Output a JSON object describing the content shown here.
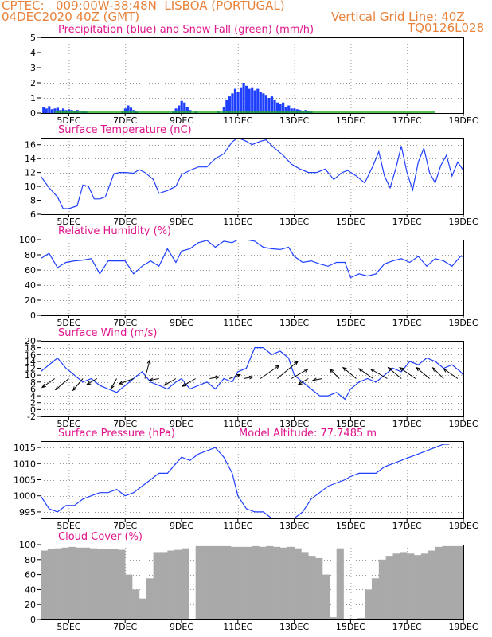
{
  "header": {
    "line1": "CPTEC:   009:00W-38:48N  LISBOA (PORTUGAL)",
    "line2": "04DEC2020 40Z (GMT)",
    "vertical_grid": "Vertical Grid Line: 40Z",
    "code": "TQ0126L028",
    "color": "#e8823a"
  },
  "colors": {
    "title": "#e0148c",
    "line": "#1f3fff",
    "precip": "#1f3fff",
    "snow": "#1faa1f",
    "cloud": "#a9a9a9",
    "arrow": "#000000"
  },
  "x_axis": {
    "range": [
      4,
      19
    ],
    "ticks": [
      5,
      7,
      9,
      11,
      13,
      15,
      17,
      19
    ],
    "tick_labels": [
      "5DEC",
      "7DEC",
      "9DEC",
      "11DEC",
      "13DEC",
      "15DEC",
      "17DEC",
      "19DEC"
    ]
  },
  "chart_data": [
    {
      "type": "bar",
      "title": "Precipitation (blue) and Snow Fall (green) (mm/h)",
      "ylim": [
        0,
        5
      ],
      "yticks": [
        0,
        1,
        2,
        3,
        4,
        5
      ],
      "series": [
        {
          "name": "Precipitation",
          "x": [
            4.1,
            4.2,
            4.3,
            4.4,
            4.5,
            4.6,
            4.7,
            4.8,
            4.9,
            5.0,
            5.1,
            5.2,
            5.3,
            5.4,
            5.5,
            5.6,
            6.9,
            7.0,
            7.1,
            7.2,
            7.3,
            7.4,
            8.7,
            8.8,
            8.9,
            9.0,
            9.1,
            9.2,
            9.3,
            9.5,
            10.3,
            10.5,
            10.6,
            10.7,
            10.8,
            10.9,
            11.0,
            11.1,
            11.2,
            11.3,
            11.4,
            11.5,
            11.6,
            11.7,
            11.8,
            11.9,
            12.0,
            12.1,
            12.2,
            12.3,
            12.4,
            12.5,
            12.6,
            12.7,
            12.8,
            12.9,
            13.0,
            13.1,
            13.2,
            13.3,
            13.4,
            13.5,
            13.6
          ],
          "values": [
            0.4,
            0.3,
            0.45,
            0.25,
            0.3,
            0.35,
            0.2,
            0.3,
            0.2,
            0.25,
            0.2,
            0.15,
            0.2,
            0.1,
            0.15,
            0.1,
            0.1,
            0.3,
            0.5,
            0.35,
            0.2,
            0.1,
            0.1,
            0.3,
            0.5,
            0.8,
            0.7,
            0.4,
            0.2,
            0.1,
            0.1,
            0.4,
            0.9,
            1.1,
            1.3,
            1.6,
            1.4,
            1.7,
            2.0,
            1.8,
            1.6,
            1.7,
            1.5,
            1.6,
            1.4,
            1.3,
            1.2,
            1.0,
            1.1,
            0.9,
            0.7,
            0.6,
            0.7,
            0.4,
            0.5,
            0.3,
            0.3,
            0.25,
            0.2,
            0.15,
            0.2,
            0.15,
            0.1
          ]
        },
        {
          "name": "Snow Fall",
          "x": [
            4.5,
            6.0,
            7.5,
            9.0,
            10.5,
            12.0,
            13.5,
            15.0,
            16.5,
            18.0
          ],
          "values": [
            0.05,
            0.05,
            0.05,
            0.05,
            0.05,
            0.05,
            0.05,
            0.05,
            0.05,
            0.05
          ]
        }
      ]
    },
    {
      "type": "line",
      "title": "Surface Temperature (nC)",
      "ylim": [
        6,
        17
      ],
      "yticks": [
        6,
        8,
        10,
        12,
        14,
        16
      ],
      "x": [
        4.0,
        4.3,
        4.6,
        4.8,
        5.0,
        5.3,
        5.5,
        5.7,
        5.9,
        6.1,
        6.3,
        6.6,
        6.8,
        7.0,
        7.3,
        7.5,
        7.7,
        8.0,
        8.2,
        8.5,
        8.8,
        9.0,
        9.3,
        9.6,
        9.9,
        10.2,
        10.5,
        10.8,
        11.0,
        11.3,
        11.5,
        11.8,
        12.0,
        12.3,
        12.6,
        12.9,
        13.2,
        13.5,
        13.8,
        14.1,
        14.4,
        14.7,
        14.9,
        15.2,
        15.5,
        15.8,
        16.0,
        16.2,
        16.4,
        16.6,
        16.8,
        17.0,
        17.2,
        17.4,
        17.6,
        17.8,
        18.0,
        18.2,
        18.4,
        18.6,
        18.8,
        19.0
      ],
      "values": [
        11.5,
        9.8,
        8.5,
        6.8,
        6.8,
        7.2,
        10.2,
        10.0,
        8.2,
        8.2,
        8.5,
        11.8,
        12.0,
        12.0,
        11.9,
        12.4,
        12.0,
        11.0,
        9.0,
        9.4,
        10.0,
        11.7,
        12.3,
        12.8,
        12.8,
        14.0,
        14.7,
        16.4,
        17.0,
        16.5,
        16.0,
        16.5,
        16.7,
        15.5,
        14.5,
        13.2,
        12.5,
        12.0,
        12.0,
        12.5,
        11.0,
        12.0,
        12.3,
        11.5,
        10.5,
        13.0,
        15.0,
        11.5,
        9.8,
        12.5,
        15.8,
        12.0,
        9.5,
        13.5,
        15.5,
        12.0,
        10.5,
        13.0,
        14.5,
        11.5,
        13.5,
        12.3
      ]
    },
    {
      "type": "line",
      "title": "Relative Humidity (%)",
      "ylim": [
        0,
        100
      ],
      "yticks": [
        0,
        20,
        40,
        60,
        80,
        100
      ],
      "x": [
        4.0,
        4.3,
        4.6,
        4.9,
        5.2,
        5.5,
        5.8,
        6.1,
        6.4,
        6.7,
        7.0,
        7.3,
        7.6,
        7.9,
        8.2,
        8.5,
        8.8,
        9.0,
        9.3,
        9.6,
        9.9,
        10.2,
        10.5,
        10.8,
        11.0,
        11.3,
        11.6,
        11.9,
        12.2,
        12.5,
        12.8,
        13.0,
        13.3,
        13.6,
        13.9,
        14.2,
        14.5,
        14.8,
        15.0,
        15.3,
        15.6,
        15.9,
        16.2,
        16.5,
        16.8,
        17.1,
        17.4,
        17.7,
        18.0,
        18.3,
        18.6,
        18.9,
        19.0
      ],
      "values": [
        75,
        82,
        63,
        70,
        72,
        73,
        75,
        55,
        72,
        72,
        72,
        55,
        65,
        72,
        65,
        88,
        70,
        85,
        88,
        96,
        99,
        90,
        98,
        96,
        100,
        100,
        98,
        90,
        88,
        87,
        90,
        78,
        70,
        72,
        68,
        65,
        70,
        70,
        50,
        55,
        52,
        55,
        68,
        72,
        75,
        70,
        78,
        65,
        75,
        72,
        65,
        78,
        78
      ]
    },
    {
      "type": "line",
      "title": "Surface Wind (m/s)",
      "ylim": [
        -2,
        20
      ],
      "yticks": [
        -2,
        0,
        2,
        4,
        6,
        8,
        10,
        12,
        14,
        16,
        18,
        20
      ],
      "x": [
        4.0,
        4.3,
        4.6,
        4.9,
        5.2,
        5.5,
        5.8,
        6.1,
        6.4,
        6.7,
        7.0,
        7.3,
        7.6,
        7.9,
        8.2,
        8.5,
        8.8,
        9.0,
        9.3,
        9.6,
        9.9,
        10.2,
        10.5,
        10.8,
        11.0,
        11.3,
        11.6,
        11.9,
        12.2,
        12.5,
        12.8,
        13.0,
        13.3,
        13.6,
        13.9,
        14.2,
        14.5,
        14.8,
        15.0,
        15.3,
        15.6,
        15.9,
        16.2,
        16.5,
        16.8,
        17.1,
        17.4,
        17.7,
        18.0,
        18.3,
        18.6,
        18.9,
        19.0
      ],
      "values": [
        11,
        13,
        15,
        12,
        10,
        8,
        9,
        7,
        6,
        5,
        7,
        9,
        11,
        8,
        7,
        6,
        8,
        9,
        6,
        7,
        8,
        6,
        9,
        8,
        11,
        12,
        18,
        18,
        16,
        17,
        15,
        10,
        8,
        6,
        4,
        4,
        5,
        3,
        6,
        8,
        9,
        8,
        10,
        12,
        11,
        14,
        13,
        15,
        14,
        12,
        13,
        11,
        10
      ],
      "arrows": [
        {
          "x": 4.5,
          "angle": 215,
          "speed": 8
        },
        {
          "x": 5.0,
          "angle": 220,
          "speed": 9
        },
        {
          "x": 5.5,
          "angle": 230,
          "speed": 8
        },
        {
          "x": 6.0,
          "angle": 210,
          "speed": 6
        },
        {
          "x": 6.7,
          "angle": 240,
          "speed": 6
        },
        {
          "x": 7.3,
          "angle": 200,
          "speed": 8
        },
        {
          "x": 7.7,
          "angle": 75,
          "speed": 10
        },
        {
          "x": 8.2,
          "angle": 190,
          "speed": 5
        },
        {
          "x": 8.8,
          "angle": 210,
          "speed": 7
        },
        {
          "x": 9.5,
          "angle": 210,
          "speed": 8
        },
        {
          "x": 10.0,
          "angle": 10,
          "speed": 5
        },
        {
          "x": 10.7,
          "angle": 20,
          "speed": 6
        },
        {
          "x": 11.2,
          "angle": 10,
          "speed": 5
        },
        {
          "x": 11.8,
          "angle": 35,
          "speed": 12
        },
        {
          "x": 12.4,
          "angle": 40,
          "speed": 14
        },
        {
          "x": 12.9,
          "angle": 30,
          "speed": 10
        },
        {
          "x": 13.5,
          "angle": 210,
          "speed": 6
        },
        {
          "x": 14.0,
          "angle": 190,
          "speed": 5
        },
        {
          "x": 14.6,
          "angle": 135,
          "speed": 7
        },
        {
          "x": 15.2,
          "angle": 140,
          "speed": 9
        },
        {
          "x": 15.8,
          "angle": 145,
          "speed": 9
        },
        {
          "x": 16.3,
          "angle": 150,
          "speed": 10
        },
        {
          "x": 16.8,
          "angle": 140,
          "speed": 9
        },
        {
          "x": 17.3,
          "angle": 145,
          "speed": 10
        },
        {
          "x": 17.8,
          "angle": 140,
          "speed": 9
        },
        {
          "x": 18.3,
          "angle": 135,
          "speed": 8
        },
        {
          "x": 18.8,
          "angle": 145,
          "speed": 9
        }
      ]
    },
    {
      "type": "line",
      "title": "Surface Pressure (hPa)",
      "subtitle": "Model Altitude: 77.7485 m",
      "ylim": [
        993,
        1017
      ],
      "yticks": [
        995,
        1000,
        1005,
        1010,
        1015
      ],
      "x": [
        4.0,
        4.3,
        4.6,
        4.9,
        5.2,
        5.5,
        5.8,
        6.1,
        6.4,
        6.7,
        7.0,
        7.3,
        7.6,
        7.9,
        8.2,
        8.5,
        8.8,
        9.0,
        9.3,
        9.6,
        9.9,
        10.2,
        10.5,
        10.8,
        11.0,
        11.3,
        11.6,
        11.9,
        12.2,
        12.5,
        12.8,
        13.0,
        13.3,
        13.6,
        13.9,
        14.2,
        14.5,
        14.8,
        15.0,
        15.3,
        15.6,
        15.9,
        16.2,
        16.5,
        16.8,
        17.1,
        17.4,
        17.7,
        18.0,
        18.3,
        18.5
      ],
      "values": [
        1000,
        996,
        995,
        997,
        997,
        999,
        1000,
        1001,
        1001,
        1002,
        1000,
        1001,
        1003,
        1005,
        1007,
        1007,
        1010,
        1012,
        1011,
        1013,
        1014,
        1015,
        1012,
        1007,
        1000,
        996,
        995,
        995,
        993,
        993,
        993,
        993,
        995,
        999,
        1001,
        1003,
        1004,
        1005,
        1006,
        1007,
        1007,
        1007,
        1009,
        1010,
        1011,
        1012,
        1013,
        1014,
        1015,
        1016,
        1016
      ]
    },
    {
      "type": "bar",
      "title": "Cloud Cover (%)",
      "ylim": [
        0,
        100
      ],
      "yticks": [
        0,
        20,
        40,
        60,
        80,
        100
      ],
      "x": [
        4.0,
        4.25,
        4.5,
        4.75,
        5.0,
        5.25,
        5.5,
        5.75,
        6.0,
        6.25,
        6.5,
        6.75,
        7.0,
        7.25,
        7.5,
        7.75,
        8.0,
        8.25,
        8.5,
        8.75,
        9.0,
        9.25,
        9.5,
        9.75,
        10.0,
        10.25,
        10.5,
        10.75,
        11.0,
        11.25,
        11.5,
        11.75,
        12.0,
        12.25,
        12.5,
        12.75,
        13.0,
        13.25,
        13.5,
        13.75,
        14.0,
        14.25,
        14.5,
        14.75,
        15.0,
        15.25,
        15.5,
        15.75,
        16.0,
        16.25,
        16.5,
        16.75,
        17.0,
        17.25,
        17.5,
        17.75,
        18.0,
        18.25,
        18.5,
        18.75
      ],
      "values": [
        92,
        94,
        95,
        96,
        97,
        96,
        96,
        95,
        94,
        94,
        94,
        93,
        60,
        40,
        28,
        55,
        90,
        90,
        92,
        93,
        95,
        1,
        98,
        98,
        98,
        98,
        98,
        97,
        97,
        97,
        98,
        97,
        98,
        97,
        96,
        97,
        95,
        90,
        85,
        82,
        60,
        3,
        95,
        0,
        0,
        2,
        40,
        55,
        80,
        85,
        88,
        90,
        88,
        86,
        88,
        92,
        97,
        98,
        98,
        98
      ]
    }
  ]
}
